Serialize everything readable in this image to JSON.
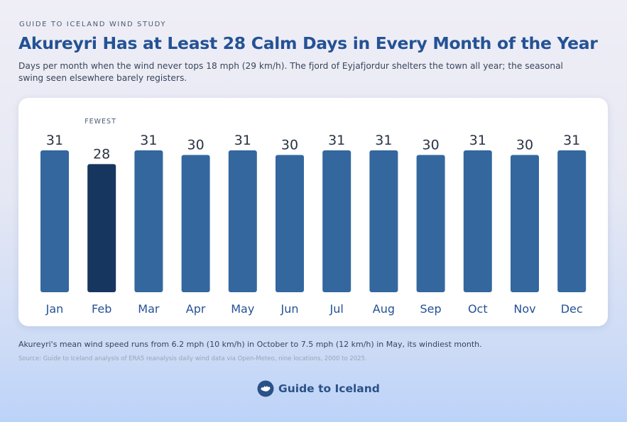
{
  "header": {
    "eyebrow": "GUIDE TO ICELAND WIND STUDY",
    "title": "Akureyri Has at Least 28 Calm Days in Every Month of the Year",
    "subtitle": "Days per month when the wind never tops 18 mph (29 km/h). The fjord of Eyjafjordur shelters the town all year; the seasonal swing seen elsewhere barely registers."
  },
  "chart_data": {
    "type": "bar",
    "categories": [
      "Jan",
      "Feb",
      "Mar",
      "Apr",
      "May",
      "Jun",
      "Jul",
      "Aug",
      "Sep",
      "Oct",
      "Nov",
      "Dec"
    ],
    "values": [
      31,
      28,
      31,
      30,
      31,
      30,
      31,
      31,
      30,
      31,
      30,
      31
    ],
    "ylim": [
      0,
      31
    ],
    "highlight": {
      "category": "Feb",
      "label": "FEWEST"
    },
    "colors": {
      "bar": "#33679e",
      "highlight": "#17365f",
      "value_label": "#2a3342",
      "category_label": "#245294"
    },
    "grid": false,
    "legend": "none"
  },
  "footer": {
    "note": "Akureyri's mean wind speed runs from 6.2 mph (10 km/h) in October to 7.5 mph (12 km/h) in May, its windiest month.",
    "source": "Source: Guide to Iceland analysis of ERA5 reanalysis daily wind data via Open-Meteo, nine locations, 2000 to 2025.",
    "brand": "Guide to Iceland",
    "brand_icon": "iceland-map-icon"
  }
}
